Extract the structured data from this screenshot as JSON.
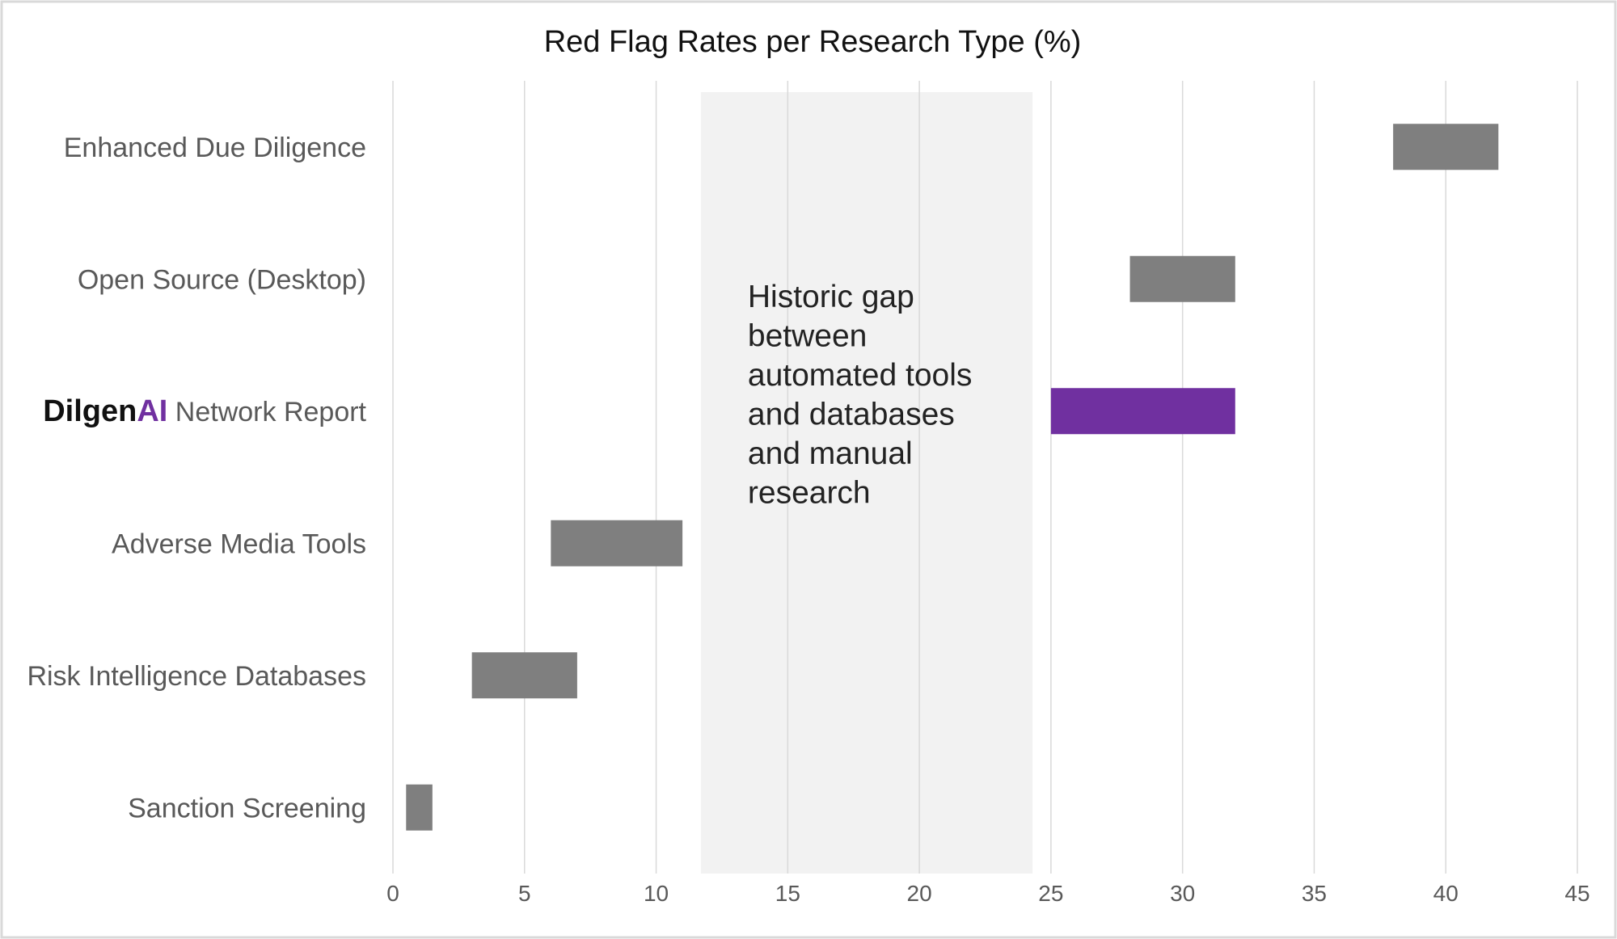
{
  "chart_data": {
    "type": "bar",
    "orientation": "horizontal-range",
    "title": "Red Flag Rates per Research Type (%)",
    "xlabel": "",
    "ylabel": "",
    "xlim": [
      0,
      45
    ],
    "x_ticks": [
      0,
      5,
      10,
      15,
      20,
      25,
      30,
      35,
      40,
      45
    ],
    "grid": "vertical",
    "legend": "none",
    "categories": [
      {
        "label": "Enhanced Due Diligence",
        "start": 38,
        "end": 42,
        "highlight": false
      },
      {
        "label": "Open Source (Desktop)",
        "start": 28,
        "end": 32,
        "highlight": false
      },
      {
        "label": "Network Report",
        "brand_prefix": "Dilgen",
        "brand_accent": "AI",
        "start": 25,
        "end": 32,
        "highlight": true
      },
      {
        "label": "Adverse Media Tools",
        "start": 6,
        "end": 11,
        "highlight": false
      },
      {
        "label": "Risk Intelligence Databases",
        "start": 3,
        "end": 7,
        "highlight": false
      },
      {
        "label": "Sanction Screening",
        "start": 0.5,
        "end": 1.5,
        "highlight": false
      }
    ],
    "annotation": {
      "range": [
        11.7,
        24.3
      ],
      "lines": [
        "Historic gap",
        "between",
        "automated tools",
        "and databases",
        "and manual",
        "research"
      ]
    },
    "colors": {
      "bar": "#7f7f7f",
      "highlight": "#7030a0",
      "gap_band": "#f2f2f2",
      "grid": "#d9d9d9",
      "border": "#d9d9d9"
    }
  }
}
